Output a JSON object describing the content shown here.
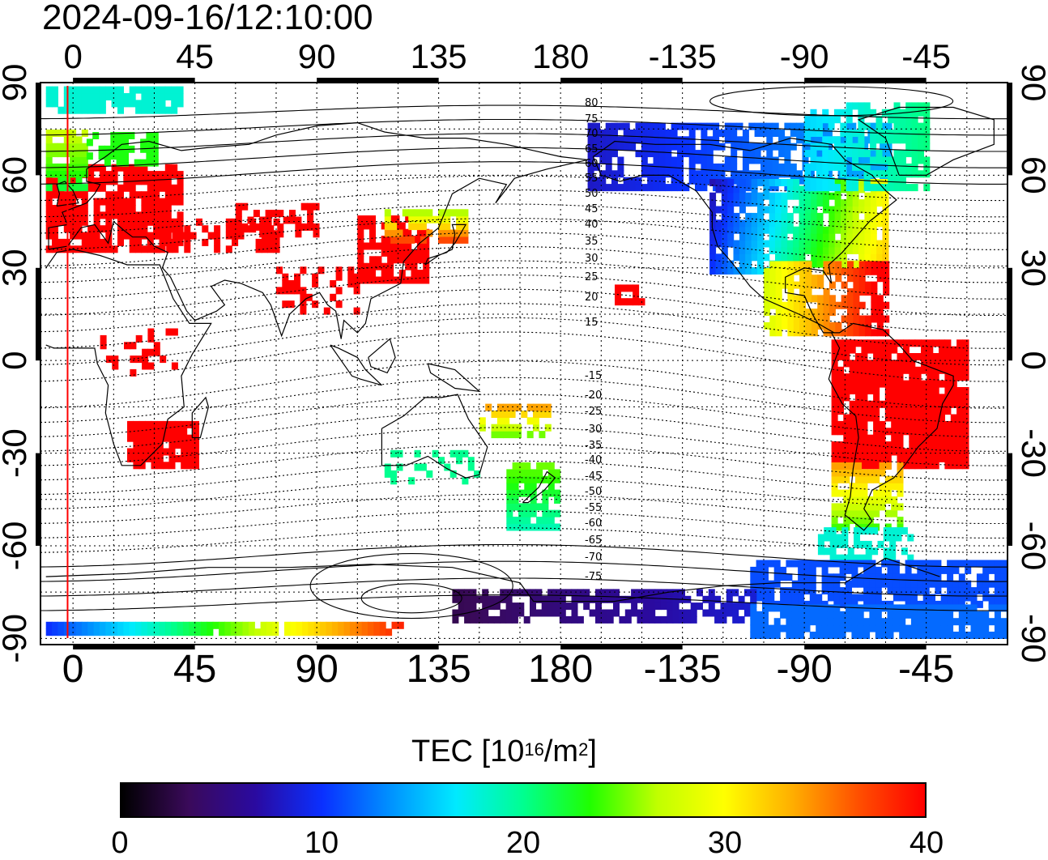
{
  "title": "2024-09-16/12:10:00",
  "map": {
    "x_axis_top_ticks": [
      "0",
      "45",
      "90",
      "135",
      "180",
      "-135",
      "-90",
      "-45"
    ],
    "x_axis_bottom_ticks": [
      "0",
      "45",
      "90",
      "135",
      "180",
      "-135",
      "-90",
      "-45"
    ],
    "y_axis_left_ticks": [
      "90",
      "60",
      "30",
      "0",
      "-30",
      "-60",
      "-90"
    ],
    "y_axis_right_ticks": [
      "90",
      "60",
      "30",
      "0",
      "-30",
      "-60",
      "-90"
    ],
    "lon_range_deg": [
      -12,
      345
    ],
    "lat_range_deg": [
      -92,
      90
    ],
    "grid": true,
    "grid_style": "dotted",
    "marker_line_lon": -2,
    "marker_line_color": "#ff0000",
    "magnetic_contour_labels": [
      "80",
      "75",
      "70",
      "65",
      "60",
      "55",
      "50",
      "45",
      "40",
      "35",
      "30",
      "25",
      "20",
      "15",
      "-15",
      "-20",
      "-25",
      "-30",
      "-35",
      "-40",
      "-45",
      "-50",
      "-55",
      "-60",
      "-65",
      "-70",
      "-75"
    ]
  },
  "colorbar": {
    "label_main": "TEC  [10",
    "label_exp1": "16",
    "label_mid": "/m",
    "label_exp2": "2",
    "label_end": "]",
    "min": 0,
    "max": 40,
    "tick_labels": [
      "0",
      "10",
      "20",
      "30",
      "40"
    ],
    "colormap": [
      "#000000",
      "#3a0a5a",
      "#2a0aa0",
      "#0a30ff",
      "#0090ff",
      "#00eaff",
      "#00ff90",
      "#20ff00",
      "#c0ff00",
      "#ffff00",
      "#ffb000",
      "#ff5000",
      "#ff0000"
    ]
  }
}
